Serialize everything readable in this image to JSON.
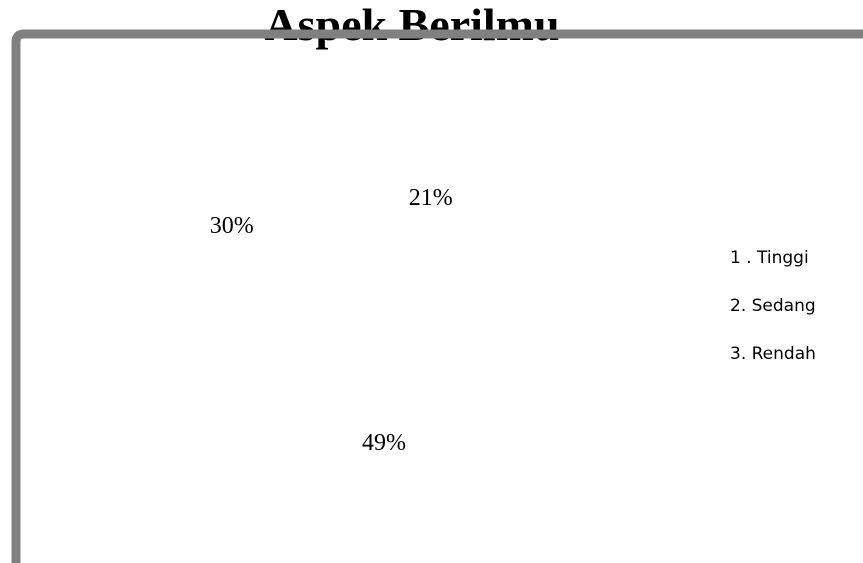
{
  "chart_data": {
    "type": "pie",
    "title": "Aspek Berilmu",
    "categories": [
      "1 . Tinggi",
      "2. Sedang",
      "3. Rendah"
    ],
    "values": [
      21,
      49,
      30
    ],
    "value_labels": [
      "21%",
      "49%",
      "30%"
    ],
    "colors": [
      "#ffffff",
      "#ffffff",
      "#ffffff"
    ],
    "legend": "right"
  }
}
